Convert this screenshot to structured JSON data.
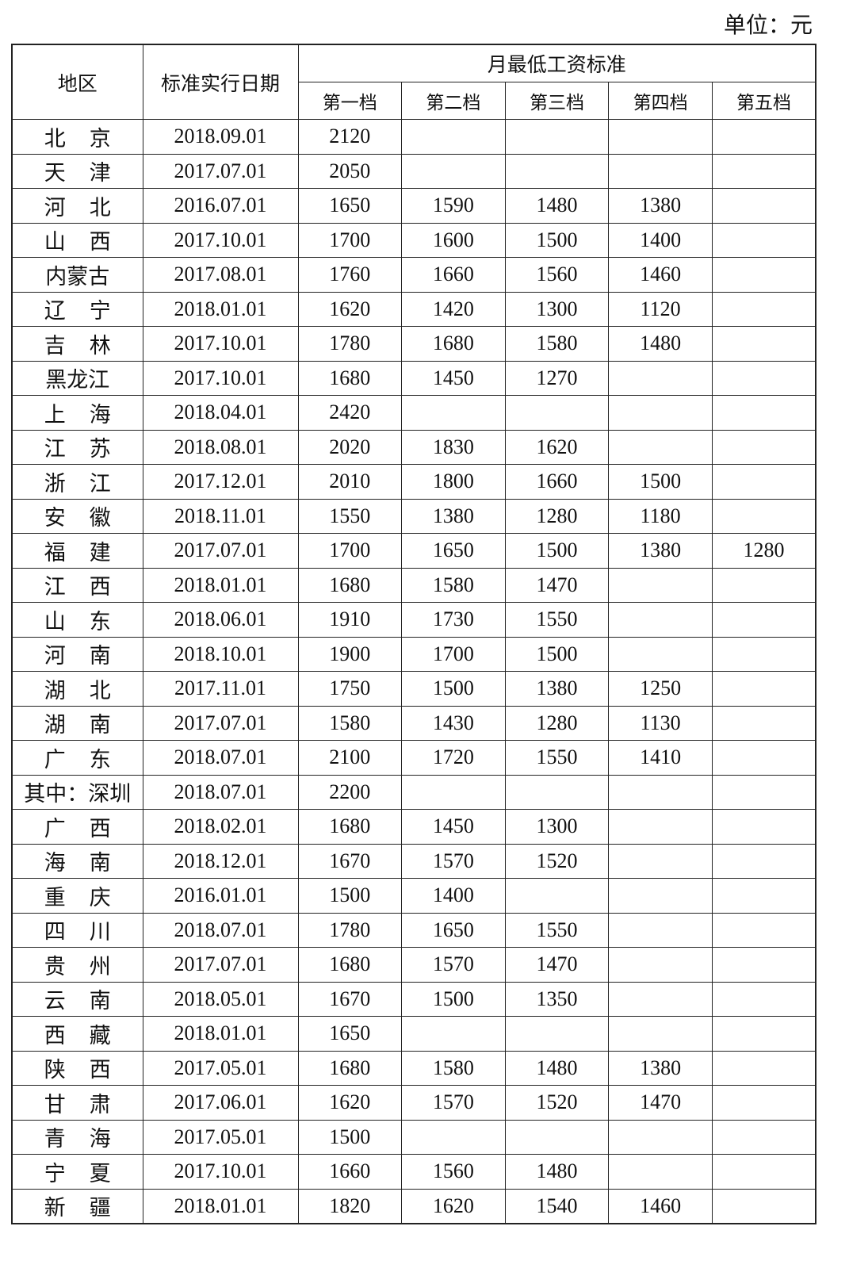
{
  "unit_label": "单位：元",
  "headers": {
    "region": "地区",
    "date": "标准实行日期",
    "group": "月最低工资标准",
    "tiers": [
      "第一档",
      "第二档",
      "第三档",
      "第四档",
      "第五档"
    ]
  },
  "rows": [
    {
      "region": "北京",
      "date": "2018.09.01",
      "v": [
        "2120",
        "",
        "",
        "",
        ""
      ]
    },
    {
      "region": "天津",
      "date": "2017.07.01",
      "v": [
        "2050",
        "",
        "",
        "",
        ""
      ]
    },
    {
      "region": "河北",
      "date": "2016.07.01",
      "v": [
        "1650",
        "1590",
        "1480",
        "1380",
        ""
      ]
    },
    {
      "region": "山西",
      "date": "2017.10.01",
      "v": [
        "1700",
        "1600",
        "1500",
        "1400",
        ""
      ]
    },
    {
      "region": "内蒙古",
      "date": "2017.08.01",
      "v": [
        "1760",
        "1660",
        "1560",
        "1460",
        ""
      ]
    },
    {
      "region": "辽宁",
      "date": "2018.01.01",
      "v": [
        "1620",
        "1420",
        "1300",
        "1120",
        ""
      ]
    },
    {
      "region": "吉林",
      "date": "2017.10.01",
      "v": [
        "1780",
        "1680",
        "1580",
        "1480",
        ""
      ]
    },
    {
      "region": "黑龙江",
      "date": "2017.10.01",
      "v": [
        "1680",
        "1450",
        "1270",
        "",
        ""
      ]
    },
    {
      "region": "上海",
      "date": "2018.04.01",
      "v": [
        "2420",
        "",
        "",
        "",
        ""
      ]
    },
    {
      "region": "江苏",
      "date": "2018.08.01",
      "v": [
        "2020",
        "1830",
        "1620",
        "",
        ""
      ]
    },
    {
      "region": "浙江",
      "date": "2017.12.01",
      "v": [
        "2010",
        "1800",
        "1660",
        "1500",
        ""
      ]
    },
    {
      "region": "安徽",
      "date": "2018.11.01",
      "v": [
        "1550",
        "1380",
        "1280",
        "1180",
        ""
      ]
    },
    {
      "region": "福建",
      "date": "2017.07.01",
      "v": [
        "1700",
        "1650",
        "1500",
        "1380",
        "1280"
      ]
    },
    {
      "region": "江西",
      "date": "2018.01.01",
      "v": [
        "1680",
        "1580",
        "1470",
        "",
        ""
      ]
    },
    {
      "region": "山东",
      "date": "2018.06.01",
      "v": [
        "1910",
        "1730",
        "1550",
        "",
        ""
      ]
    },
    {
      "region": "河南",
      "date": "2018.10.01",
      "v": [
        "1900",
        "1700",
        "1500",
        "",
        ""
      ]
    },
    {
      "region": "湖北",
      "date": "2017.11.01",
      "v": [
        "1750",
        "1500",
        "1380",
        "1250",
        ""
      ]
    },
    {
      "region": "湖南",
      "date": "2017.07.01",
      "v": [
        "1580",
        "1430",
        "1280",
        "1130",
        ""
      ]
    },
    {
      "region": "广东",
      "date": "2018.07.01",
      "v": [
        "2100",
        "1720",
        "1550",
        "1410",
        ""
      ]
    },
    {
      "region": "其中：深圳",
      "date": "2018.07.01",
      "v": [
        "2200",
        "",
        "",
        "",
        ""
      ]
    },
    {
      "region": "广西",
      "date": "2018.02.01",
      "v": [
        "1680",
        "1450",
        "1300",
        "",
        ""
      ]
    },
    {
      "region": "海南",
      "date": "2018.12.01",
      "v": [
        "1670",
        "1570",
        "1520",
        "",
        ""
      ]
    },
    {
      "region": "重庆",
      "date": "2016.01.01",
      "v": [
        "1500",
        "1400",
        "",
        "",
        ""
      ]
    },
    {
      "region": "四川",
      "date": "2018.07.01",
      "v": [
        "1780",
        "1650",
        "1550",
        "",
        ""
      ]
    },
    {
      "region": "贵州",
      "date": "2017.07.01",
      "v": [
        "1680",
        "1570",
        "1470",
        "",
        ""
      ]
    },
    {
      "region": "云南",
      "date": "2018.05.01",
      "v": [
        "1670",
        "1500",
        "1350",
        "",
        ""
      ]
    },
    {
      "region": "西藏",
      "date": "2018.01.01",
      "v": [
        "1650",
        "",
        "",
        "",
        ""
      ]
    },
    {
      "region": "陕西",
      "date": "2017.05.01",
      "v": [
        "1680",
        "1580",
        "1480",
        "1380",
        ""
      ]
    },
    {
      "region": "甘肃",
      "date": "2017.06.01",
      "v": [
        "1620",
        "1570",
        "1520",
        "1470",
        ""
      ]
    },
    {
      "region": "青海",
      "date": "2017.05.01",
      "v": [
        "1500",
        "",
        "",
        "",
        ""
      ]
    },
    {
      "region": "宁夏",
      "date": "2017.10.01",
      "v": [
        "1660",
        "1560",
        "1480",
        "",
        ""
      ]
    },
    {
      "region": "新疆",
      "date": "2018.01.01",
      "v": [
        "1820",
        "1620",
        "1540",
        "1460",
        ""
      ]
    }
  ]
}
